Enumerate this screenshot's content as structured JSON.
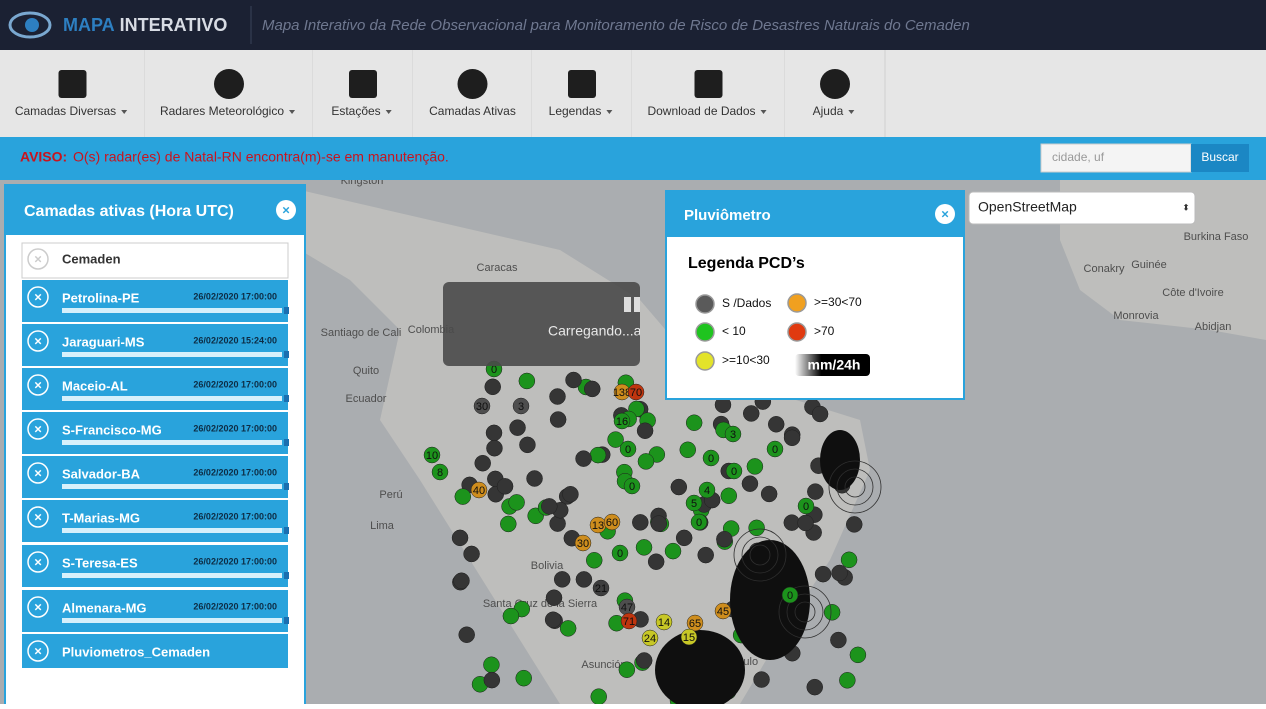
{
  "header": {
    "brand_1": "MAPA",
    "brand_2": "INTERATIVO",
    "subtitle": "Mapa Interativo da Rede Observacional para Monitoramento de Risco de Desastres Naturais do Cemaden"
  },
  "toolbar": [
    {
      "label": "Camadas Diversas",
      "dropdown": true
    },
    {
      "label": "Radares Meteorológico",
      "dropdown": true
    },
    {
      "label": "Estações",
      "dropdown": true
    },
    {
      "label": "Camadas Ativas",
      "dropdown": false
    },
    {
      "label": "Legendas",
      "dropdown": true
    },
    {
      "label": "Download de Dados",
      "dropdown": true
    },
    {
      "label": "Ajuda",
      "dropdown": true
    }
  ],
  "notice": {
    "label": "AVISO:",
    "text": "O(s) radar(es) de Natal-RN encontra(m)-se em manutenção."
  },
  "search": {
    "placeholder": "cidade, uf",
    "button": "Buscar"
  },
  "layers_panel": {
    "title": "Camadas ativas (Hora UTC)",
    "items": [
      {
        "name": "Cemaden"
      },
      {
        "name": "Petrolina-PE",
        "time": "26/02/2020 17:00:00"
      },
      {
        "name": "Jaraguari-MS",
        "time": "26/02/2020 15:24:00"
      },
      {
        "name": "Maceio-AL",
        "time": "26/02/2020 17:00:00"
      },
      {
        "name": "S-Francisco-MG",
        "time": "26/02/2020 17:00:00"
      },
      {
        "name": "Salvador-BA",
        "time": "26/02/2020 17:00:00"
      },
      {
        "name": "T-Marias-MG",
        "time": "26/02/2020 17:00:00"
      },
      {
        "name": "S-Teresa-ES",
        "time": "26/02/2020 17:00:00"
      },
      {
        "name": "Almenara-MG",
        "time": "26/02/2020 17:00:00"
      },
      {
        "name": "Pluviometros_Cemaden"
      }
    ]
  },
  "loading": "Carregando...agu",
  "legend_popup": {
    "title": "Pluviômetro",
    "heading": "Legenda PCD’s",
    "items": [
      {
        "label": "S /Dados",
        "color": "#5a5a5a"
      },
      {
        "label": "< 10",
        "color": "#1fc41f"
      },
      {
        "label": ">=10<30",
        "color": "#e3e32a"
      },
      {
        "label": ">=30<70",
        "color": "#f0a020"
      },
      {
        "label": ">70",
        "color": "#e03a10"
      }
    ],
    "unit": "mm/24h"
  },
  "basemap_select": "OpenStreetMap",
  "map": {
    "places": [
      "Kingston",
      "Caracas",
      "Santiago de Cali",
      "Colombia",
      "Quito",
      "Ecuador",
      "Perú",
      "Lima",
      "Bolivia",
      "Santa Cruz de la Sierra",
      "Asunción",
      "Paulo",
      "Burkina Faso",
      "Conakry",
      "Guinée",
      "Côte d'Ivoire",
      "Monrovia",
      "Abidjan"
    ],
    "markers": [
      {
        "label": "0",
        "color": "#1fa01f"
      },
      {
        "label": "30",
        "color": "#555555"
      },
      {
        "label": "3",
        "color": "#555555"
      },
      {
        "label": "10",
        "color": "#1fa01f"
      },
      {
        "label": "8",
        "color": "#1fa01f"
      },
      {
        "label": "40",
        "color": "#e09a20"
      },
      {
        "label": "0",
        "color": "#1fa01f"
      },
      {
        "label": "0",
        "color": "#1fa01f"
      },
      {
        "label": "4",
        "color": "#1fa01f"
      },
      {
        "label": "5",
        "color": "#1fa01f"
      },
      {
        "label": "0",
        "color": "#1fa01f"
      },
      {
        "label": "13",
        "color": "#e09a20"
      },
      {
        "label": "60",
        "color": "#e09a20"
      },
      {
        "label": "30",
        "color": "#e09a20"
      },
      {
        "label": "0",
        "color": "#1fa01f"
      },
      {
        "label": "21",
        "color": "#444444"
      },
      {
        "label": "47",
        "color": "#555555"
      },
      {
        "label": "71",
        "color": "#d03a10"
      },
      {
        "label": "24",
        "color": "#d8d82a"
      },
      {
        "label": "14",
        "color": "#d8d82a"
      },
      {
        "label": "0",
        "color": "#1fa01f"
      },
      {
        "label": "0",
        "color": "#1fa01f"
      },
      {
        "label": "16",
        "color": "#1fa01f"
      },
      {
        "label": "138",
        "color": "#e09a20"
      },
      {
        "label": "70",
        "color": "#d03a10"
      },
      {
        "label": "3",
        "color": "#1fa01f"
      },
      {
        "label": "0",
        "color": "#1fa01f"
      },
      {
        "label": "0",
        "color": "#1fa01f"
      },
      {
        "label": "45",
        "color": "#e09a20"
      },
      {
        "label": "65",
        "color": "#e09a20"
      },
      {
        "label": "15",
        "color": "#d8d82a"
      },
      {
        "label": "0",
        "color": "#1fa01f"
      }
    ]
  }
}
